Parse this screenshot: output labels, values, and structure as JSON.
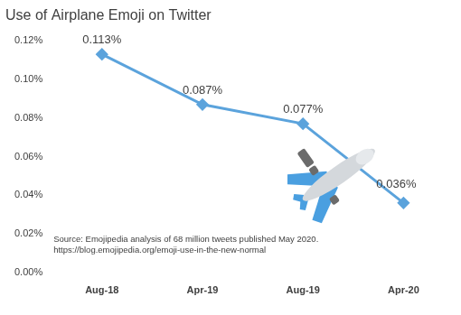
{
  "chart_data": {
    "type": "line",
    "title": "Use of Airplane Emoji on Twitter",
    "categories": [
      "Aug-18",
      "Apr-19",
      "Aug-19",
      "Apr-20"
    ],
    "values": [
      0.113,
      0.087,
      0.077,
      0.036
    ],
    "value_labels": [
      "0.113%",
      "0.087%",
      "0.077%",
      "0.036%"
    ],
    "data_labels": true,
    "color": "#5ba3dc",
    "marker": "diamond",
    "line_style": "solid",
    "ylim": [
      0,
      0.12
    ],
    "yticks": [
      {
        "value": 0,
        "label": "0.00%"
      },
      {
        "value": 0.02,
        "label": "0.02%"
      },
      {
        "value": 0.04,
        "label": "0.04%"
      },
      {
        "value": 0.06,
        "label": "0.06%"
      },
      {
        "value": 0.08,
        "label": "0.08%"
      },
      {
        "value": 0.1,
        "label": "0.10%"
      },
      {
        "value": 0.12,
        "label": "0.12%"
      }
    ],
    "grid": false,
    "annotations": [
      "Source: Emojipedia analysis of 68 million tweets published May 2020.",
      "https://blog.emojipedia.org/emoji-use-in-the-new-normal"
    ]
  }
}
